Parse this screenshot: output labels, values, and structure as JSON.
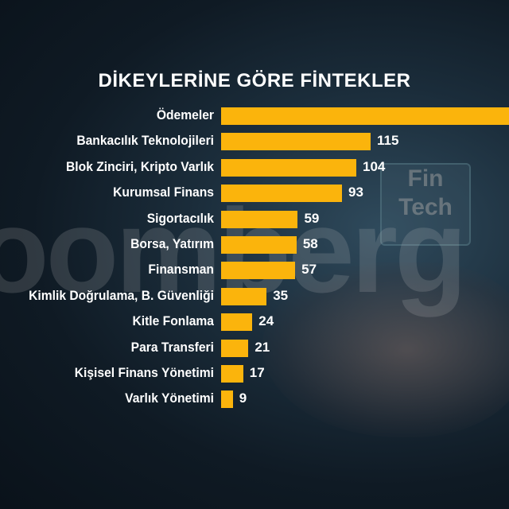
{
  "chart_data": {
    "type": "bar",
    "orientation": "horizontal",
    "title": "DİKEYLERİNE GÖRE FİNTEKLER",
    "categories": [
      "Ödemeler",
      "Bankacılık Teknolojileri",
      "Blok Zinciri, Kripto Varlık",
      "Kurumsal Finans",
      "Sigortacılık",
      "Borsa, Yatırım",
      "Finansman",
      "Kimlik Doğrulama, B. Güvenliği",
      "Kitle Fonlama",
      "Para Transferi",
      "Kişisel Finans Yönetimi",
      "Varlık Yönetimi"
    ],
    "values": [
      null,
      115,
      104,
      93,
      59,
      58,
      57,
      35,
      24,
      21,
      17,
      9
    ],
    "value_labels": [
      "",
      "115",
      "104",
      "93",
      "59",
      "58",
      "57",
      "35",
      "24",
      "21",
      "17",
      "9"
    ],
    "bar_color": "#fbb40c",
    "grid": false
  },
  "background": {
    "watermark": "oomberg",
    "chip_text": [
      "Fin",
      "Tech"
    ]
  }
}
